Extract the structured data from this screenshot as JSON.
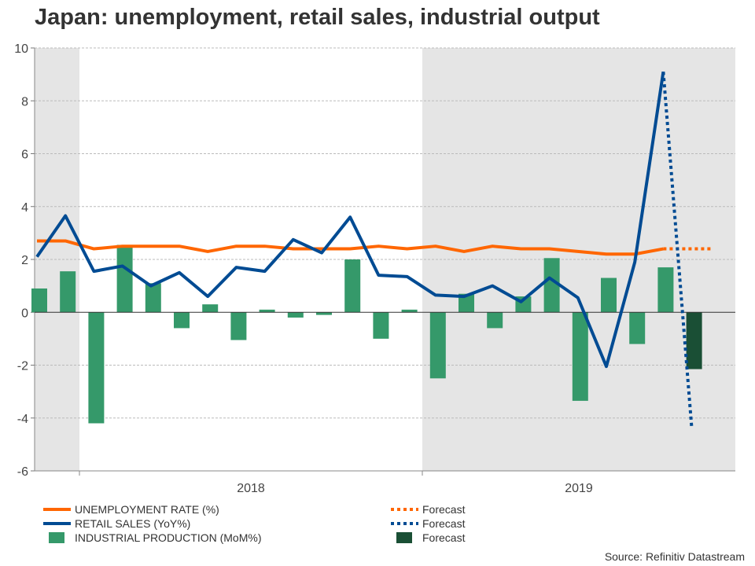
{
  "title": "Japan: unemployment, retail sales, industrial output",
  "source": "Source: Refinitiv Datastream",
  "chart_data": {
    "type": "bar+line",
    "title": "Japan: unemployment, retail sales, industrial output",
    "ylim": [
      -6,
      10
    ],
    "yticks": [
      "10",
      "8",
      "6",
      "4",
      "2",
      "0",
      "-2",
      "-4",
      "-6"
    ],
    "ytick_values": [
      10,
      8,
      6,
      4,
      2,
      0,
      -2,
      -4,
      -6
    ],
    "xtick_labels": [
      "2018",
      "2019"
    ],
    "grid": true,
    "shaded_periods": [
      "2017",
      "2019"
    ],
    "months": [
      "2017-11",
      "2017-12",
      "2018-01",
      "2018-02",
      "2018-03",
      "2018-04",
      "2018-05",
      "2018-06",
      "2018-07",
      "2018-08",
      "2018-09",
      "2018-10",
      "2018-11",
      "2018-12",
      "2019-01",
      "2019-02",
      "2019-03",
      "2019-04",
      "2019-05",
      "2019-06",
      "2019-07",
      "2019-08",
      "2019-09",
      "2019-10"
    ],
    "series": [
      {
        "name": "UNEMPLOYMENT RATE (%)",
        "type": "line",
        "color": "#ff6600",
        "values": [
          2.7,
          2.7,
          2.4,
          2.5,
          2.5,
          2.5,
          2.3,
          2.5,
          2.5,
          2.4,
          2.4,
          2.4,
          2.5,
          2.4,
          2.5,
          2.3,
          2.5,
          2.4,
          2.4,
          2.3,
          2.2,
          2.2,
          2.4,
          null
        ],
        "forecast": {
          "name": "Forecast",
          "from": "2019-09",
          "to": "2019-10",
          "values": [
            2.4,
            2.4
          ]
        }
      },
      {
        "name": "RETAIL SALES (YoY%)",
        "type": "line",
        "color": "#004b93",
        "values": [
          2.1,
          3.65,
          1.55,
          1.75,
          1.0,
          1.5,
          0.6,
          1.7,
          1.55,
          2.75,
          2.25,
          3.6,
          1.4,
          1.35,
          0.65,
          0.6,
          1.0,
          0.4,
          1.3,
          0.55,
          -2.05,
          1.9,
          9.1,
          null
        ],
        "forecast": {
          "name": "Forecast",
          "from": "2019-09",
          "to": "2019-10",
          "values": [
            9.1,
            -4.4
          ]
        }
      },
      {
        "name": "INDUSTRIAL PRODUCTION (MoM%)",
        "type": "bar",
        "color": "#35996a",
        "values": [
          0.9,
          1.55,
          -4.2,
          2.55,
          1.1,
          -0.6,
          0.3,
          -1.05,
          0.1,
          -0.2,
          -0.1,
          2.0,
          -1.0,
          0.1,
          -2.5,
          0.7,
          -0.6,
          0.6,
          2.05,
          -3.35,
          1.3,
          -1.2,
          1.7,
          null
        ],
        "forecast": {
          "name": "Forecast",
          "color": "#1a4f35",
          "month": "2019-10",
          "value": -2.15
        }
      }
    ],
    "legend_position": "bottom"
  }
}
